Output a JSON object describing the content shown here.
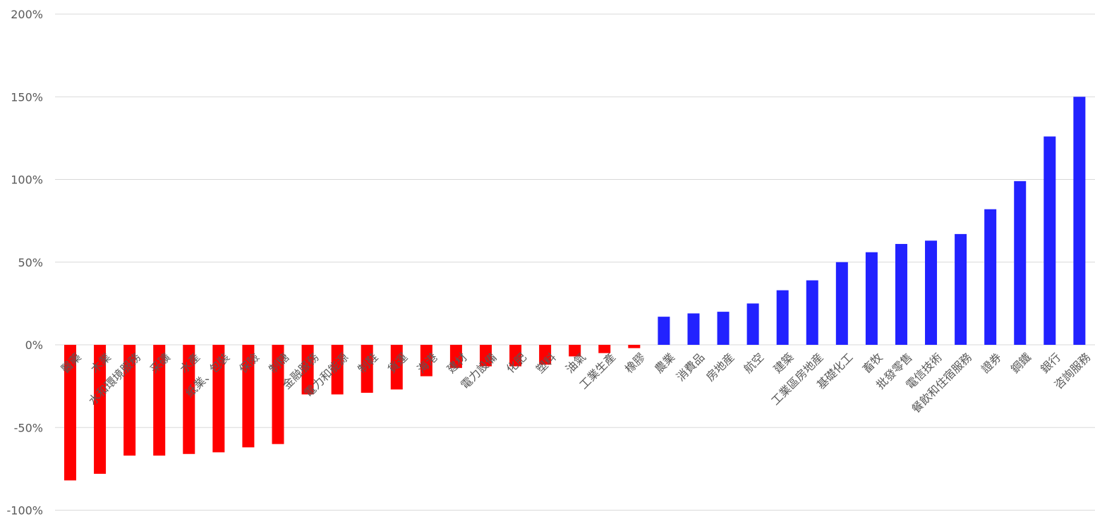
{
  "chart_data": {
    "type": "bar",
    "title": "",
    "xlabel": "",
    "ylabel": "",
    "ylim": [
      -100,
      200
    ],
    "y_ticks": [
      "200%",
      "150%",
      "100%",
      "50%",
      "0%",
      "-50%",
      "-100%"
    ],
    "y_tick_values": [
      200,
      150,
      100,
      50,
      0,
      -50,
      -100
    ],
    "grid": true,
    "legend": "none",
    "colors": {
      "negative": "#ff0000",
      "positive": "#2222ff"
    },
    "categories": [
      "醫藥",
      "木業",
      "水和環境服務",
      "采礦",
      "水產",
      "紙業、包裝",
      "保險",
      "制糖",
      "金融服務",
      "電力和能源",
      "制鞋",
      "貨運",
      "海港",
      "建材",
      "電力設備",
      "化肥",
      "塑料",
      "油氣",
      "工業生產",
      "橡膠",
      "農業",
      "消費品",
      "房地産",
      "航空",
      "建築",
      "工業區房地産",
      "基礎化工",
      "畜牧",
      "批發零售",
      "電信技術",
      "餐飲和住宿服務",
      "證券",
      "鋼鐵",
      "銀行",
      "咨詢服務"
    ],
    "values": [
      -82,
      -78,
      -67,
      -67,
      -66,
      -65,
      -62,
      -60,
      -30,
      -30,
      -29,
      -27,
      -19,
      -14,
      -13,
      -13,
      -12,
      -7,
      -5,
      -2,
      17,
      19,
      20,
      25,
      33,
      39,
      50,
      56,
      61,
      63,
      67,
      82,
      99,
      126,
      150
    ]
  }
}
